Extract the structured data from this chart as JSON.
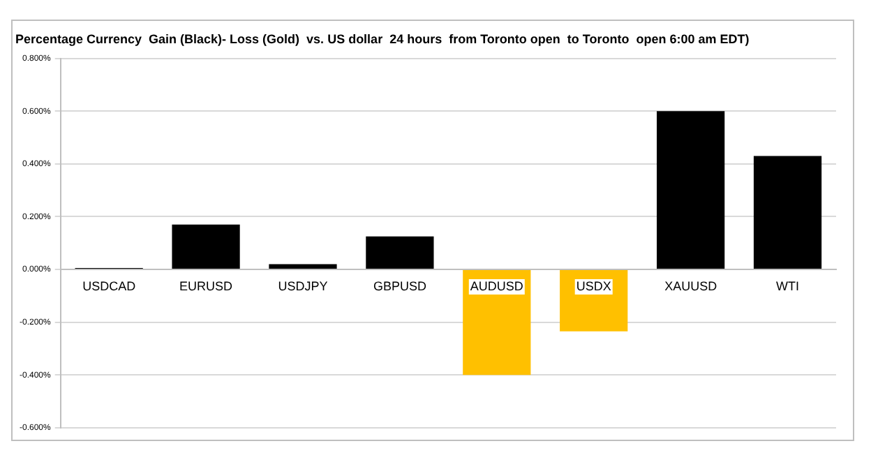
{
  "chart_data": {
    "type": "bar",
    "title": "Percentage Currency  Gain (Black)- Loss (Gold)  vs. US dollar  24 hours  from Toronto open  to Toronto  open 6:00 am EDT)",
    "categories": [
      "USDCAD",
      "EURUSD",
      "USDJPY",
      "GBPUSD",
      "AUDUSD",
      "USDX",
      "XAUUSD",
      "WTI"
    ],
    "values": [
      0.005,
      0.17,
      0.02,
      0.125,
      -0.4,
      -0.235,
      0.6,
      0.43
    ],
    "colors": [
      "#000000",
      "#000000",
      "#000000",
      "#000000",
      "#ffc000",
      "#ffc000",
      "#000000",
      "#000000"
    ],
    "ylim": [
      -0.6,
      0.8
    ],
    "yticks": [
      {
        "value": -0.6,
        "label": "-0.600%"
      },
      {
        "value": -0.4,
        "label": "-0.400%"
      },
      {
        "value": -0.2,
        "label": "-0.200%"
      },
      {
        "value": 0,
        "label": "0.000%"
      },
      {
        "value": 0.2,
        "label": "0.200%"
      },
      {
        "value": 0.4,
        "label": "0.400%"
      },
      {
        "value": 0.6,
        "label": "0.600%"
      },
      {
        "value": 0.8,
        "label": "0.800%"
      }
    ],
    "grid": "y",
    "legend": false
  }
}
